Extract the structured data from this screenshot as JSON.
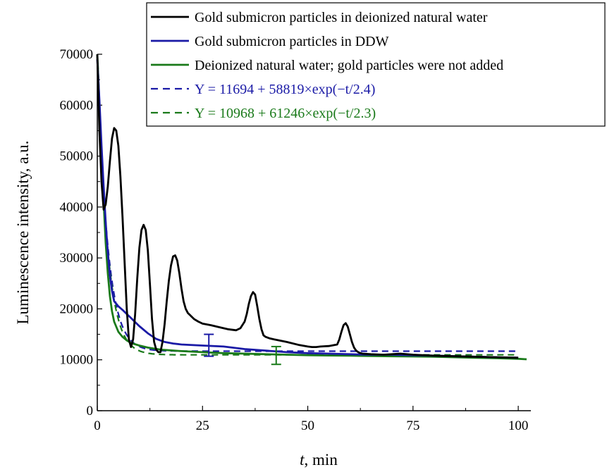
{
  "chart_data": {
    "type": "line",
    "xlabel": {
      "var": "t",
      "rest": ", min"
    },
    "ylabel": "Luminescence intensity, a.u.",
    "xlim": [
      0,
      103
    ],
    "ylim": [
      0,
      70000
    ],
    "x_ticks": [
      0,
      25,
      50,
      75,
      100
    ],
    "y_ticks": [
      0,
      10000,
      20000,
      30000,
      40000,
      50000,
      60000,
      70000
    ],
    "legend_position": "top-right",
    "series": [
      {
        "name": "Gold submicron particles in deionized natural water",
        "color": "#000000",
        "style": "solid",
        "x": [
          0,
          0.5,
          1,
          1.5,
          2,
          2.5,
          3,
          3.5,
          4,
          4.5,
          5,
          5.5,
          6,
          6.5,
          7,
          7.5,
          8,
          8.5,
          9,
          9.5,
          10,
          10.5,
          11,
          11.5,
          12,
          12.5,
          13,
          13.5,
          14,
          14.5,
          15,
          15.5,
          16,
          16.5,
          17,
          17.5,
          18,
          18.5,
          19,
          19.5,
          20,
          20.5,
          21,
          21.5,
          22,
          22.5,
          23,
          24,
          25,
          27,
          29,
          31,
          33,
          34,
          35,
          35.5,
          36,
          36.5,
          37,
          37.5,
          38,
          38.5,
          39,
          39.5,
          40,
          41,
          42,
          45,
          48,
          50,
          51,
          52,
          53,
          55,
          57,
          57.5,
          58,
          58.5,
          59,
          59.5,
          60,
          60.5,
          61,
          61.5,
          62,
          62.5,
          63,
          64,
          65,
          68,
          70,
          72,
          75,
          80,
          85,
          90,
          95,
          100
        ],
        "y": [
          70000,
          55000,
          45000,
          39500,
          40500,
          44000,
          49000,
          53500,
          55500,
          55000,
          52000,
          46000,
          38000,
          29000,
          20000,
          14000,
          12500,
          14000,
          19000,
          26000,
          32000,
          35500,
          36500,
          35500,
          31500,
          25000,
          18000,
          13500,
          12000,
          11500,
          11500,
          13500,
          17000,
          21500,
          25500,
          28500,
          30300,
          30500,
          29500,
          27000,
          24000,
          21500,
          20000,
          19200,
          18800,
          18400,
          18000,
          17500,
          17100,
          16800,
          16400,
          16000,
          15800,
          16200,
          17500,
          19000,
          21000,
          22500,
          23300,
          22800,
          20500,
          18000,
          16000,
          14800,
          14500,
          14200,
          14000,
          13500,
          12900,
          12600,
          12500,
          12500,
          12600,
          12700,
          13000,
          14000,
          15500,
          16800,
          17200,
          16500,
          15000,
          13500,
          12400,
          11800,
          11500,
          11300,
          11200,
          11150,
          11100,
          11000,
          11100,
          11200,
          11000,
          10800,
          10700,
          10600,
          10500,
          10400
        ]
      },
      {
        "name": "Gold submicron particles in DDW",
        "color": "#1a1aa6",
        "style": "solid",
        "x": [
          0,
          0.5,
          1,
          1.5,
          2,
          2.5,
          3,
          3.5,
          4,
          5,
          6,
          7,
          8,
          9,
          10,
          12,
          14,
          16,
          18,
          20,
          25,
          30,
          35,
          40,
          45,
          50,
          55,
          60,
          65,
          70,
          75,
          80,
          85,
          90,
          95,
          100
        ],
        "y": [
          69000,
          61000,
          52000,
          44000,
          37000,
          31000,
          26500,
          23500,
          21500,
          20500,
          19800,
          19000,
          18200,
          17400,
          16600,
          15200,
          14100,
          13500,
          13200,
          13000,
          12800,
          12600,
          12100,
          11800,
          11500,
          11300,
          11200,
          11100,
          11000,
          11000,
          10900,
          10800,
          10700,
          10600,
          10500,
          10400
        ]
      },
      {
        "name": "Deionized natural water; gold particles were not added",
        "color": "#1a7a1a",
        "style": "solid",
        "x": [
          0,
          0.5,
          1,
          1.5,
          2,
          2.5,
          3,
          3.5,
          4,
          5,
          6,
          7,
          8,
          10,
          12,
          15,
          20,
          25,
          30,
          35,
          40,
          45,
          50,
          55,
          60,
          65,
          70,
          75,
          80,
          85,
          90,
          95,
          100,
          102
        ],
        "y": [
          70000,
          60000,
          50000,
          41000,
          33000,
          27000,
          22500,
          19500,
          17500,
          15500,
          14500,
          13800,
          13300,
          12800,
          12400,
          12000,
          11700,
          11500,
          11300,
          11200,
          11100,
          11000,
          10900,
          10850,
          10800,
          10750,
          10700,
          10650,
          10600,
          10500,
          10400,
          10300,
          10200,
          10100
        ]
      },
      {
        "name": "Y = 11694 + 58819×exp(−t/2.4)",
        "color": "#1a1aa6",
        "style": "dashed",
        "fit": {
          "a": 11694,
          "b": 58819,
          "tau": 2.4
        }
      },
      {
        "name": "Y = 10968 + 61246×exp(−t/2.3)",
        "color": "#1a7a1a",
        "style": "dashed",
        "fit": {
          "a": 10968,
          "b": 61246,
          "tau": 2.3
        }
      }
    ],
    "error_bars": [
      {
        "x": 26.5,
        "y_low": 10700,
        "y_high": 15000,
        "color": "#1a1aa6"
      },
      {
        "x": 42.5,
        "y_low": 9100,
        "y_high": 12600,
        "color": "#1a7a1a"
      }
    ]
  }
}
